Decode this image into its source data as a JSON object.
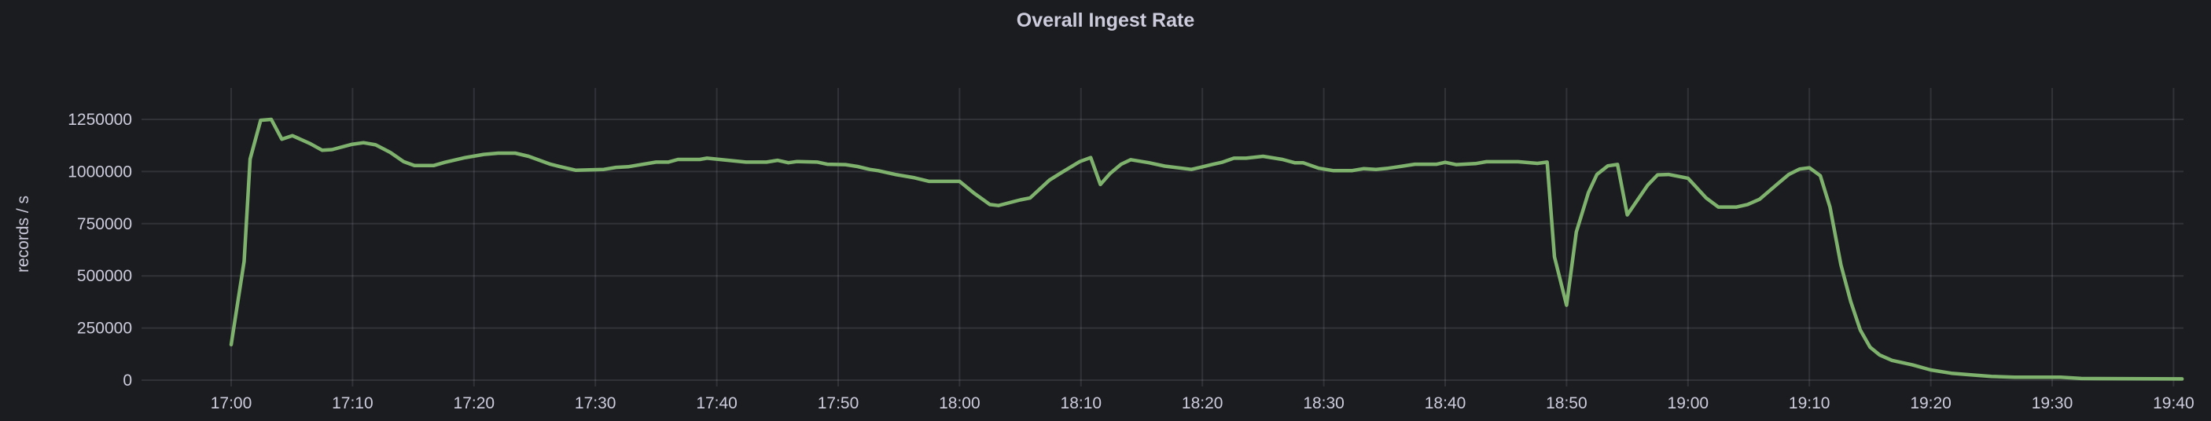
{
  "chart_data": {
    "type": "line",
    "title": "Overall Ingest Rate",
    "xlabel": "",
    "ylabel": "records / s",
    "x_unit": "minutes since 17:00",
    "xlim": [
      -8.5,
      161.5
    ],
    "ylim": [
      0,
      1290000
    ],
    "grid": true,
    "legend": "none",
    "line_color": "#7eb26d",
    "y_ticks": [
      0,
      250000,
      500000,
      750000,
      1000000,
      1250000
    ],
    "y_tick_labels": [
      "0",
      "250000",
      "500000",
      "750000",
      "1000000",
      "1250000"
    ],
    "x_ticks": [
      0,
      10,
      20,
      30,
      40,
      50,
      60,
      70,
      80,
      90,
      100,
      110,
      120,
      130,
      140,
      150,
      160
    ],
    "x_tick_labels": [
      "17:00",
      "17:10",
      "17:20",
      "17:30",
      "17:40",
      "17:50",
      "18:00",
      "18:10",
      "18:20",
      "18:30",
      "18:40",
      "18:50",
      "19:00",
      "19:10",
      "19:20",
      "19:30",
      "19:40"
    ],
    "series": [
      {
        "name": "Overall Ingest Rate",
        "x": [
          0,
          1.07,
          1.56,
          2.43,
          3.3,
          4.17,
          5.04,
          6.5,
          7.5,
          8.3,
          9.9,
          10.9,
          11.9,
          13.1,
          14.2,
          15.1,
          16.7,
          17.6,
          19.3,
          20.8,
          22.0,
          23.4,
          24.5,
          26.3,
          27.0,
          28.4,
          30.7,
          31.7,
          32.7,
          35.0,
          36.0,
          36.8,
          38.6,
          39.2,
          42.4,
          44.1,
          45.0,
          45.9,
          46.6,
          48.3,
          49.1,
          50.6,
          51.6,
          52.6,
          53.3,
          54.8,
          56.3,
          57.5,
          60.0,
          61.2,
          62.5,
          63.2,
          65.0,
          65.8,
          67.4,
          68.4,
          69.9,
          70.8,
          71.6,
          72.4,
          73.3,
          74.1,
          75.6,
          76.9,
          79.1,
          80.9,
          81.6,
          82.6,
          83.6,
          85.0,
          86.6,
          87.6,
          88.3,
          89.6,
          90.8,
          92.3,
          93.3,
          94.3,
          95.3,
          96.5,
          97.5,
          99.3,
          100.0,
          100.9,
          102.5,
          103.4,
          106.0,
          107.6,
          108.4,
          109.0,
          110.0,
          110.8,
          111.8,
          112.5,
          113.4,
          114.2,
          115.0,
          116.7,
          117.5,
          118.4,
          120.0,
          121.5,
          122.5,
          124.0,
          124.9,
          125.9,
          127.4,
          128.3,
          129.2,
          130.0,
          130.9,
          131.7,
          132.6,
          133.4,
          134.2,
          135.0,
          135.8,
          136.8,
          138.5,
          140.0,
          141.7,
          143.2,
          145.0,
          146.9,
          150.7,
          152.4,
          160.7
        ],
        "y": [
          170000,
          570000,
          1060000,
          1246000,
          1250000,
          1155000,
          1172000,
          1134000,
          1102000,
          1105000,
          1130000,
          1138000,
          1128000,
          1092000,
          1048000,
          1029000,
          1029000,
          1044000,
          1067000,
          1082000,
          1088000,
          1088000,
          1073000,
          1035000,
          1025000,
          1006000,
          1010000,
          1020000,
          1023000,
          1045000,
          1045000,
          1058000,
          1058000,
          1064000,
          1045000,
          1045000,
          1054000,
          1042000,
          1048000,
          1045000,
          1035000,
          1033000,
          1024000,
          1010000,
          1004000,
          985000,
          970000,
          953000,
          953000,
          896000,
          842000,
          837000,
          864000,
          873000,
          959000,
          995000,
          1048000,
          1067000,
          938000,
          991000,
          1035000,
          1057000,
          1042000,
          1026000,
          1010000,
          1035000,
          1044000,
          1064000,
          1064000,
          1073000,
          1058000,
          1042000,
          1042000,
          1016000,
          1004000,
          1004000,
          1014000,
          1010000,
          1016000,
          1026000,
          1035000,
          1035000,
          1044000,
          1033000,
          1038000,
          1047000,
          1047000,
          1039000,
          1045000,
          591000,
          359000,
          710000,
          899000,
          986000,
          1027000,
          1034000,
          792000,
          936000,
          984000,
          986000,
          968000,
          873000,
          830000,
          830000,
          842000,
          867000,
          942000,
          986000,
          1012000,
          1018000,
          980000,
          830000,
          553000,
          378000,
          240000,
          158000,
          120000,
          95000,
          73000,
          49000,
          33000,
          26000,
          18000,
          14000,
          14000,
          8000,
          6000
        ]
      }
    ]
  }
}
